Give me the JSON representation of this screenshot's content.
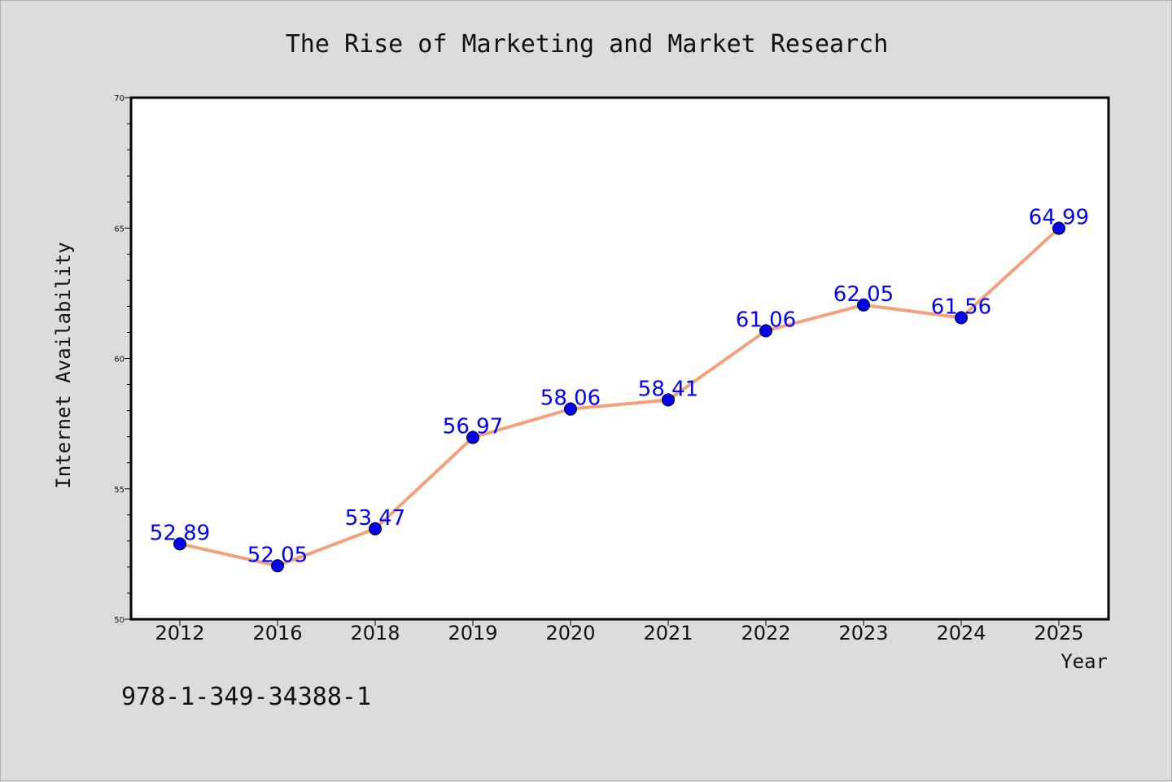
{
  "chart_data": {
    "type": "line",
    "title": "The Rise of Marketing and Market Research",
    "xlabel": "Year",
    "ylabel": "Internet Availability",
    "categories": [
      "2012",
      "2016",
      "2018",
      "2019",
      "2020",
      "2021",
      "2022",
      "2023",
      "2024",
      "2025"
    ],
    "series": [
      {
        "values": [
          52.89,
          52.05,
          53.47,
          56.97,
          58.06,
          58.41,
          61.06,
          62.05,
          61.56,
          64.99
        ],
        "line_color": "#f4a07a",
        "marker_color": "#0000ee"
      }
    ],
    "data_labels": [
      "52.89",
      "52.05",
      "53.47",
      "56.97",
      "58.06",
      "58.41",
      "61.06",
      "62.05",
      "61.56",
      "64.99"
    ],
    "ylim": [
      50,
      70
    ],
    "yticks": [
      50,
      55,
      60,
      65,
      70
    ],
    "yticks_minor_step": 1,
    "grid": false,
    "label_color": "#0000ff"
  },
  "footer": {
    "isbn": "978-1-349-34388-1"
  },
  "colors": {
    "background": "#dcdcdc",
    "plot_background": "#ffffff"
  }
}
